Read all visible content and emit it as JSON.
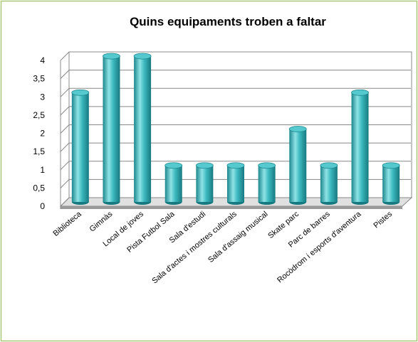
{
  "chart_data": {
    "type": "bar",
    "title": "Quins equipaments troben a faltar",
    "categories": [
      "Biblioteca",
      "Gimnàs",
      "Local de joves",
      "Pista Futbol Sala",
      "Sala d'estudi",
      "Sala d'actes i mostres culturals",
      "Sala d'assaig musical",
      "Skate parc",
      "Parc de barres",
      "Rocòdrom i esports d'aventura",
      "Pistes"
    ],
    "values": [
      3,
      4,
      4,
      1,
      1,
      1,
      1,
      2,
      1,
      3,
      1
    ],
    "color": "#3cb9bf",
    "ylim": [
      0,
      4
    ],
    "yticks": [
      0,
      {
        "value": 0.5,
        "label": "0,5"
      },
      1,
      {
        "value": 1.5,
        "label": "1,5"
      },
      2,
      {
        "value": 2.5,
        "label": "2,5"
      },
      3,
      {
        "value": 3.5,
        "label": "3,5"
      },
      4
    ],
    "grid": true
  }
}
